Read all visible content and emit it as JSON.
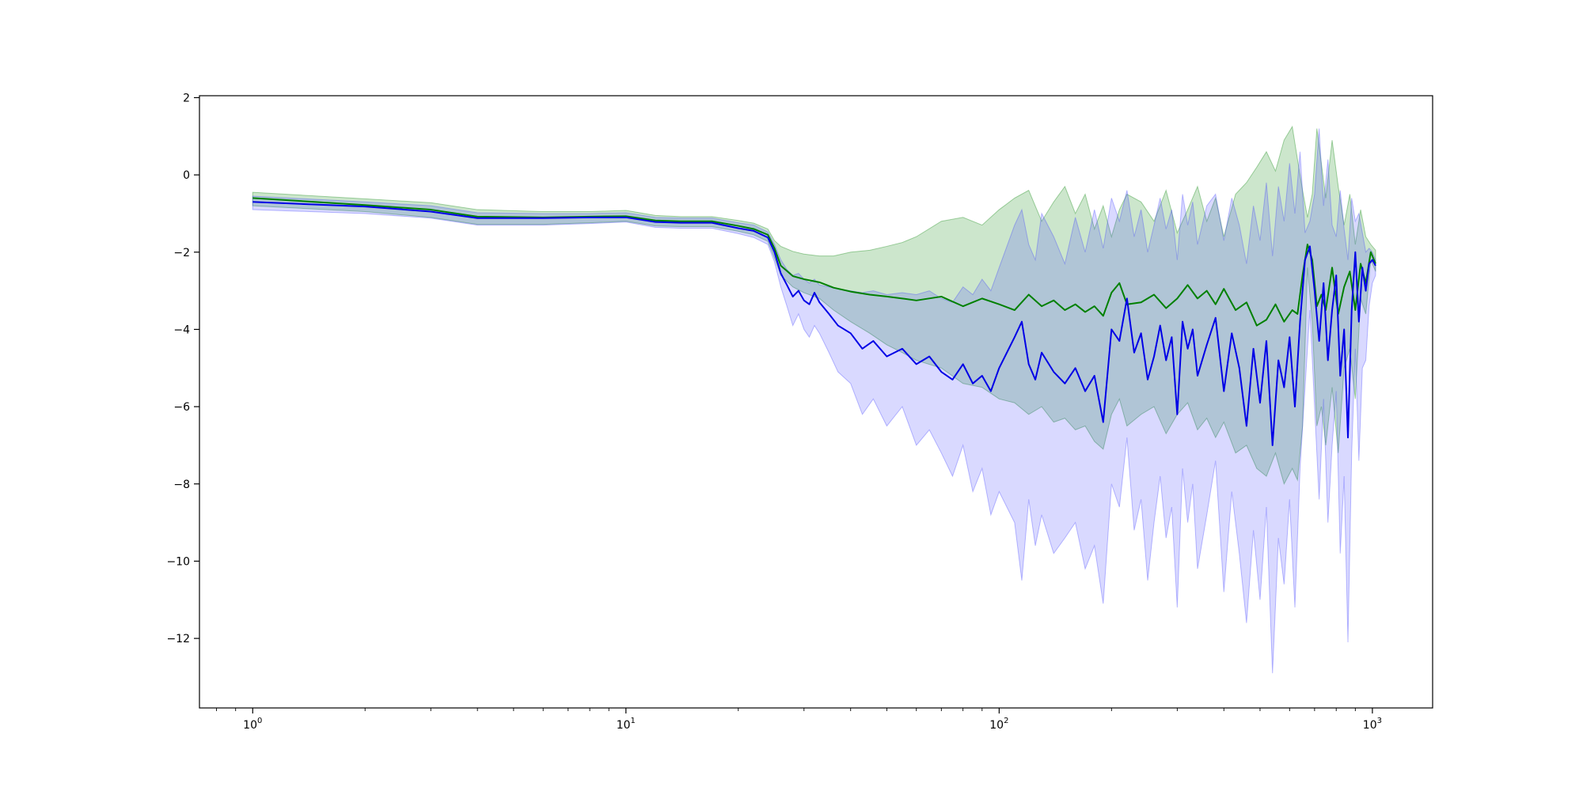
{
  "chart_data": {
    "type": "line",
    "title": "",
    "xlabel": "",
    "ylabel": "",
    "x_scale": "log",
    "xlim": [
      0.72,
      1450
    ],
    "ylim": [
      -13.8,
      2.05
    ],
    "grid": false,
    "legend": "none",
    "x_ticks": [
      {
        "value": 1,
        "base": "10",
        "exp": "0"
      },
      {
        "value": 10,
        "base": "10",
        "exp": "1"
      },
      {
        "value": 100,
        "base": "10",
        "exp": "2"
      },
      {
        "value": 1000,
        "base": "10",
        "exp": "3"
      }
    ],
    "y_ticks": [
      {
        "value": 2,
        "label": "2"
      },
      {
        "value": 0,
        "label": "0"
      },
      {
        "value": -2,
        "label": "−2"
      },
      {
        "value": -4,
        "label": "−4"
      },
      {
        "value": -6,
        "label": "−6"
      },
      {
        "value": -8,
        "label": "−8"
      },
      {
        "value": -10,
        "label": "−10"
      },
      {
        "value": -12,
        "label": "−12"
      }
    ],
    "series": [
      {
        "color": "#008000",
        "band_color": "#008000",
        "x": [
          1,
          2,
          3,
          4,
          6,
          8,
          10,
          12,
          14,
          17,
          20,
          22,
          24,
          25,
          26,
          28,
          30,
          33,
          36,
          40,
          45,
          50,
          55,
          60,
          70,
          80,
          90,
          100,
          110,
          120,
          130,
          140,
          150,
          160,
          170,
          180,
          190,
          200,
          210,
          220,
          240,
          260,
          280,
          300,
          320,
          340,
          360,
          380,
          400,
          430,
          460,
          490,
          520,
          550,
          580,
          610,
          630,
          650,
          670,
          690,
          710,
          730,
          750,
          780,
          810,
          840,
          870,
          900,
          930,
          960,
          990,
          1020
        ],
        "y": [
          -0.6,
          -0.78,
          -0.9,
          -1.08,
          -1.1,
          -1.08,
          -1.07,
          -1.18,
          -1.2,
          -1.2,
          -1.32,
          -1.4,
          -1.55,
          -1.9,
          -2.35,
          -2.62,
          -2.7,
          -2.78,
          -2.92,
          -3.02,
          -3.1,
          -3.15,
          -3.2,
          -3.25,
          -3.15,
          -3.4,
          -3.2,
          -3.35,
          -3.5,
          -3.1,
          -3.4,
          -3.25,
          -3.5,
          -3.35,
          -3.55,
          -3.4,
          -3.65,
          -3.05,
          -2.8,
          -3.35,
          -3.3,
          -3.1,
          -3.45,
          -3.2,
          -2.85,
          -3.2,
          -3.0,
          -3.35,
          -2.95,
          -3.5,
          -3.3,
          -3.9,
          -3.75,
          -3.35,
          -3.8,
          -3.5,
          -3.6,
          -2.6,
          -1.8,
          -2.2,
          -3.4,
          -3.1,
          -3.5,
          -2.4,
          -3.6,
          -2.9,
          -2.5,
          -3.5,
          -2.3,
          -2.8,
          -2.0,
          -2.3
        ],
        "upper": [
          -0.45,
          -0.62,
          -0.72,
          -0.9,
          -0.95,
          -0.95,
          -0.92,
          -1.05,
          -1.08,
          -1.08,
          -1.18,
          -1.25,
          -1.4,
          -1.7,
          -1.85,
          -1.98,
          -2.05,
          -2.1,
          -2.1,
          -2.0,
          -1.95,
          -1.85,
          -1.75,
          -1.6,
          -1.2,
          -1.1,
          -1.3,
          -0.9,
          -0.6,
          -0.4,
          -1.2,
          -0.7,
          -0.3,
          -1.0,
          -0.5,
          -1.4,
          -0.8,
          -1.6,
          -0.9,
          -0.5,
          -0.7,
          -1.2,
          -0.4,
          -1.5,
          -0.9,
          -0.3,
          -1.2,
          -0.6,
          -1.6,
          -0.5,
          -0.2,
          0.2,
          0.6,
          0.1,
          0.9,
          1.25,
          0.4,
          -0.4,
          -1.1,
          -0.5,
          1.2,
          0.3,
          -0.6,
          0.9,
          -0.3,
          -1.3,
          -0.5,
          -1.8,
          -0.9,
          -1.6,
          -1.8,
          -1.95
        ],
        "lower": [
          -0.8,
          -0.95,
          -1.1,
          -1.28,
          -1.28,
          -1.24,
          -1.2,
          -1.32,
          -1.34,
          -1.34,
          -1.46,
          -1.55,
          -1.72,
          -2.15,
          -2.6,
          -2.9,
          -3.05,
          -3.2,
          -3.5,
          -3.8,
          -4.1,
          -4.4,
          -4.6,
          -4.8,
          -5.0,
          -5.4,
          -5.5,
          -5.8,
          -5.9,
          -6.2,
          -6.0,
          -6.4,
          -6.3,
          -6.6,
          -6.5,
          -6.9,
          -7.1,
          -6.2,
          -5.8,
          -6.5,
          -6.2,
          -6.0,
          -6.7,
          -6.2,
          -5.9,
          -6.6,
          -6.3,
          -6.8,
          -6.4,
          -7.2,
          -7.0,
          -7.6,
          -7.8,
          -7.2,
          -8.0,
          -7.6,
          -7.9,
          -6.5,
          -2.4,
          -3.8,
          -6.5,
          -6.0,
          -7.0,
          -5.5,
          -7.2,
          -5.0,
          -4.5,
          -5.8,
          -3.2,
          -3.6,
          -2.2,
          -2.5
        ]
      },
      {
        "color": "#0000e6",
        "band_color": "#4040ff",
        "x": [
          1,
          2,
          3,
          4,
          6,
          8,
          10,
          12,
          14,
          17,
          20,
          22,
          24,
          25,
          26,
          27,
          28,
          29,
          30,
          31,
          32,
          33,
          35,
          37,
          40,
          43,
          46,
          50,
          55,
          60,
          65,
          70,
          75,
          80,
          85,
          90,
          95,
          100,
          110,
          115,
          120,
          125,
          130,
          140,
          150,
          160,
          170,
          180,
          190,
          200,
          210,
          220,
          230,
          240,
          250,
          260,
          270,
          280,
          290,
          300,
          310,
          320,
          330,
          340,
          360,
          380,
          400,
          420,
          440,
          460,
          480,
          500,
          520,
          540,
          560,
          580,
          600,
          620,
          640,
          660,
          680,
          700,
          720,
          740,
          760,
          780,
          800,
          820,
          840,
          860,
          880,
          900,
          920,
          940,
          960,
          980,
          1000,
          1020
        ],
        "y": [
          -0.7,
          -0.82,
          -0.95,
          -1.12,
          -1.12,
          -1.1,
          -1.1,
          -1.22,
          -1.24,
          -1.24,
          -1.38,
          -1.45,
          -1.62,
          -2.0,
          -2.55,
          -2.85,
          -3.15,
          -3.0,
          -3.25,
          -3.35,
          -3.05,
          -3.3,
          -3.6,
          -3.9,
          -4.1,
          -4.5,
          -4.3,
          -4.7,
          -4.5,
          -4.9,
          -4.7,
          -5.1,
          -5.3,
          -4.9,
          -5.4,
          -5.2,
          -5.6,
          -5.0,
          -4.2,
          -3.8,
          -4.9,
          -5.3,
          -4.6,
          -5.1,
          -5.4,
          -5.0,
          -5.6,
          -5.2,
          -6.4,
          -4.0,
          -4.3,
          -3.2,
          -4.6,
          -4.1,
          -5.3,
          -4.7,
          -3.9,
          -4.8,
          -4.2,
          -6.2,
          -3.8,
          -4.5,
          -4.0,
          -5.2,
          -4.4,
          -3.7,
          -5.6,
          -4.1,
          -5.0,
          -6.5,
          -4.5,
          -5.9,
          -4.3,
          -7.0,
          -4.8,
          -5.5,
          -4.2,
          -6.0,
          -3.8,
          -2.2,
          -1.85,
          -3.0,
          -4.3,
          -2.8,
          -4.8,
          -3.5,
          -2.6,
          -5.2,
          -4.0,
          -6.8,
          -3.5,
          -2.0,
          -3.8,
          -2.4,
          -3.0,
          -2.3,
          -2.2,
          -2.35
        ],
        "upper": [
          -0.55,
          -0.7,
          -0.8,
          -0.98,
          -1.0,
          -1.0,
          -0.98,
          -1.1,
          -1.12,
          -1.12,
          -1.24,
          -1.3,
          -1.48,
          -1.8,
          -2.2,
          -2.45,
          -2.6,
          -2.55,
          -2.7,
          -2.8,
          -2.7,
          -2.85,
          -2.9,
          -2.95,
          -3.0,
          -3.05,
          -3.0,
          -3.1,
          -3.05,
          -3.1,
          -3.0,
          -3.2,
          -3.3,
          -2.9,
          -3.1,
          -2.7,
          -3.0,
          -2.4,
          -1.3,
          -0.9,
          -1.8,
          -2.2,
          -1.0,
          -1.6,
          -2.3,
          -1.1,
          -2.0,
          -0.9,
          -1.9,
          -0.6,
          -1.2,
          -0.4,
          -1.6,
          -0.9,
          -2.0,
          -1.3,
          -0.6,
          -1.4,
          -0.9,
          -2.2,
          -0.5,
          -1.3,
          -0.7,
          -1.8,
          -0.8,
          -0.5,
          -1.7,
          -0.6,
          -1.3,
          -2.3,
          -0.8,
          -1.7,
          -0.2,
          -2.1,
          -0.3,
          -1.2,
          0.3,
          -1.0,
          0.6,
          -1.5,
          -1.2,
          -0.5,
          1.2,
          -0.8,
          0.4,
          -1.3,
          -1.6,
          -0.4,
          -1.4,
          -2.2,
          -0.6,
          -1.2,
          -1.0,
          -1.5,
          -2.0,
          -1.9,
          -2.0,
          -2.2
        ],
        "lower": [
          -0.9,
          -1.0,
          -1.12,
          -1.3,
          -1.3,
          -1.26,
          -1.22,
          -1.36,
          -1.38,
          -1.38,
          -1.52,
          -1.62,
          -1.8,
          -2.25,
          -2.9,
          -3.4,
          -3.9,
          -3.6,
          -4.0,
          -4.2,
          -3.9,
          -4.1,
          -4.6,
          -5.1,
          -5.4,
          -6.2,
          -5.8,
          -6.5,
          -6.0,
          -7.0,
          -6.6,
          -7.2,
          -7.8,
          -7.0,
          -8.2,
          -7.6,
          -8.8,
          -8.2,
          -9.0,
          -10.5,
          -8.4,
          -9.6,
          -8.8,
          -9.8,
          -9.4,
          -9.0,
          -10.2,
          -9.6,
          -11.1,
          -8.0,
          -8.6,
          -6.8,
          -9.2,
          -8.4,
          -10.5,
          -9.0,
          -7.8,
          -9.4,
          -8.6,
          -11.2,
          -7.6,
          -9.0,
          -8.0,
          -10.2,
          -8.8,
          -7.4,
          -10.8,
          -8.2,
          -9.8,
          -11.6,
          -9.2,
          -11.0,
          -8.6,
          -12.9,
          -9.4,
          -10.6,
          -8.4,
          -11.2,
          -7.6,
          -5.5,
          -3.5,
          -6.0,
          -8.4,
          -5.8,
          -9.0,
          -7.0,
          -5.6,
          -9.8,
          -7.8,
          -12.1,
          -7.2,
          -4.5,
          -7.4,
          -5.0,
          -4.8,
          -3.4,
          -2.8,
          -2.6
        ]
      }
    ]
  }
}
